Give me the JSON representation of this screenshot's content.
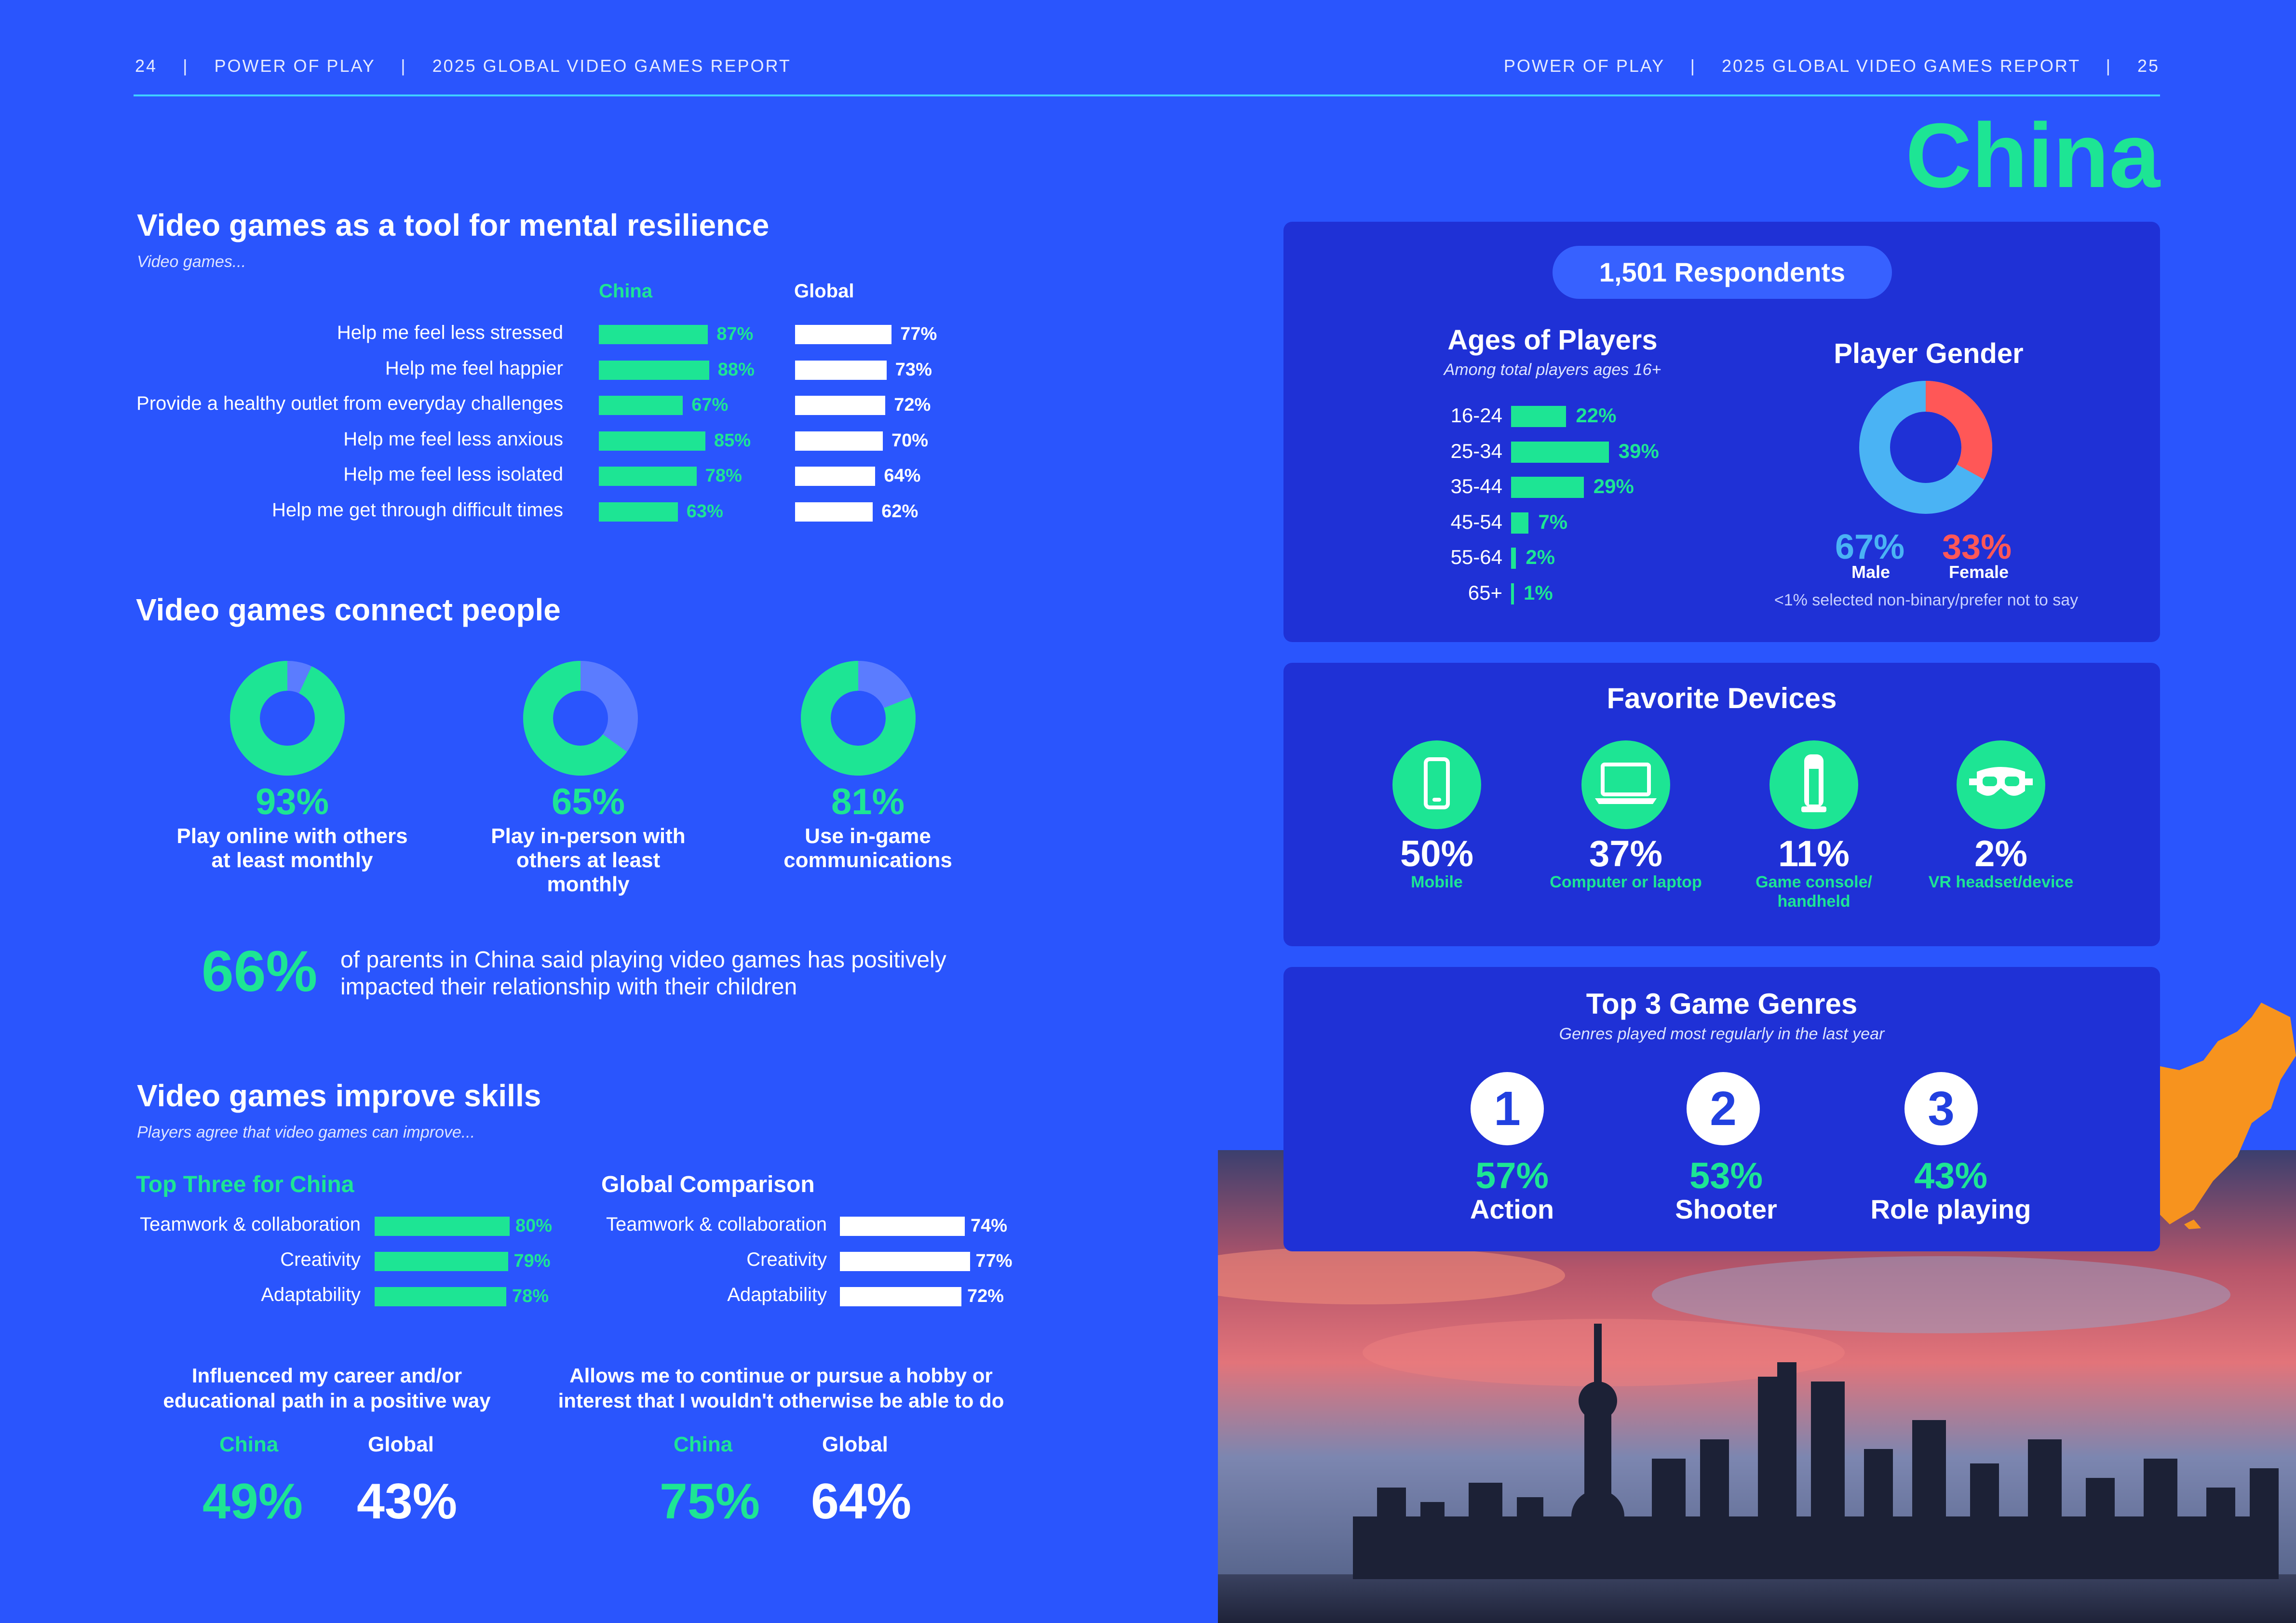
{
  "header": {
    "left_page": "24",
    "sep": "|",
    "brand": "POWER OF PLAY",
    "report": "2025 GLOBAL VIDEO GAMES REPORT",
    "right_page": "25"
  },
  "country": "China",
  "resilience": {
    "title": "Video games as a tool for mental resilience",
    "subtitle": "Video games...",
    "col_china": "China",
    "col_global": "Global",
    "rows": [
      {
        "label": "Help me feel less stressed",
        "china": "87%",
        "global": "77%"
      },
      {
        "label": "Help me feel happier",
        "china": "88%",
        "global": "73%"
      },
      {
        "label": "Provide a healthy outlet from everyday challenges",
        "china": "67%",
        "global": "72%"
      },
      {
        "label": "Help me feel less anxious",
        "china": "85%",
        "global": "70%"
      },
      {
        "label": "Help me feel less isolated",
        "china": "78%",
        "global": "64%"
      },
      {
        "label": "Help me get through difficult times",
        "china": "63%",
        "global": "62%"
      }
    ]
  },
  "connect": {
    "title": "Video games connect people",
    "donuts": [
      {
        "value": "93%",
        "fraction": 0.93,
        "line1": "Play online with others",
        "line2": "at least monthly",
        "line3": ""
      },
      {
        "value": "65%",
        "fraction": 0.65,
        "line1": "Play in-person with",
        "line2": "others at least",
        "line3": "monthly"
      },
      {
        "value": "81%",
        "fraction": 0.81,
        "line1": "Use in-game",
        "line2": "communications",
        "line3": ""
      }
    ],
    "parents_pct": "66%",
    "parents_line1": "of parents in China said playing video games has positively",
    "parents_line2": "impacted their relationship with their children"
  },
  "skills": {
    "title": "Video games improve skills",
    "subtitle": "Players agree that video games can improve...",
    "top_three_title": "Top Three for China",
    "global_title": "Global Comparison",
    "china_rows": [
      {
        "label": "Teamwork & collaboration",
        "value": "80%"
      },
      {
        "label": "Creativity",
        "value": "79%"
      },
      {
        "label": "Adaptability",
        "value": "78%"
      }
    ],
    "global_rows": [
      {
        "label": "Teamwork & collaboration",
        "value": "74%"
      },
      {
        "label": "Creativity",
        "value": "77%"
      },
      {
        "label": "Adaptability",
        "value": "72%"
      }
    ],
    "career": {
      "line1": "Influenced my career and/or",
      "line2": "educational path in a positive way",
      "china_label": "China",
      "global_label": "Global",
      "china": "49%",
      "global": "43%"
    },
    "hobby": {
      "line1": "Allows me to continue or pursue a hobby or",
      "line2": "interest that I wouldn't otherwise be able to do",
      "china_label": "China",
      "global_label": "Global",
      "china": "75%",
      "global": "64%"
    }
  },
  "respondents": "1,501 Respondents",
  "ages": {
    "title": "Ages of Players",
    "subtitle": "Among total players ages 16+",
    "rows": [
      {
        "label": "16-24",
        "value": "22%",
        "pct": 22
      },
      {
        "label": "25-34",
        "value": "39%",
        "pct": 39
      },
      {
        "label": "35-44",
        "value": "29%",
        "pct": 29
      },
      {
        "label": "45-54",
        "value": "7%",
        "pct": 7
      },
      {
        "label": "55-64",
        "value": "2%",
        "pct": 2
      },
      {
        "label": "65+",
        "value": "1%",
        "pct": 1
      }
    ]
  },
  "gender": {
    "title": "Player Gender",
    "male_pct": "67%",
    "male_label": "Male",
    "male_fraction": 0.67,
    "female_pct": "33%",
    "female_label": "Female",
    "note": "<1% selected non-binary/prefer not to say",
    "male_color": "#4ab3f4",
    "female_color": "#ff5757"
  },
  "devices": {
    "title": "Favorite Devices",
    "items": [
      {
        "icon": "phone-icon",
        "value": "50%",
        "label1": "Mobile",
        "label2": ""
      },
      {
        "icon": "laptop-icon",
        "value": "37%",
        "label1": "Computer or laptop",
        "label2": ""
      },
      {
        "icon": "console-icon",
        "value": "11%",
        "label1": "Game console/",
        "label2": "handheld"
      },
      {
        "icon": "vr-headset-icon",
        "value": "2%",
        "label1": "VR headset/device",
        "label2": ""
      }
    ]
  },
  "genres": {
    "title": "Top 3 Game Genres",
    "subtitle": "Genres played most regularly in the last year",
    "items": [
      {
        "rank": "1",
        "value": "57%",
        "name": "Action"
      },
      {
        "rank": "2",
        "value": "53%",
        "name": "Shooter"
      },
      {
        "rank": "3",
        "value": "43%",
        "name": "Role playing"
      }
    ]
  },
  "colors": {
    "background": "#2a55fd",
    "accent_green": "#1de594",
    "panel": "#1f31d6",
    "map_orange": "#f7931e"
  }
}
